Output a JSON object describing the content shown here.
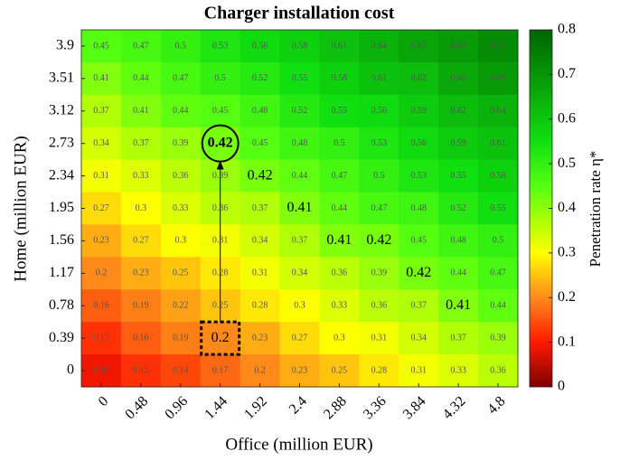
{
  "chart_data": {
    "type": "heatmap",
    "title": "Charger installation cost",
    "xlabel": "Office (million EUR)",
    "ylabel": "Home (million EUR)",
    "colorbar_label": "Penetration rate η*",
    "x": [
      0,
      0.48,
      0.96,
      1.44,
      1.92,
      2.4,
      2.88,
      3.36,
      3.84,
      4.32,
      4.8
    ],
    "y": [
      3.9,
      3.51,
      3.12,
      2.73,
      2.34,
      1.95,
      1.56,
      1.17,
      0.78,
      0.39,
      0
    ],
    "values": [
      [
        0.45,
        0.47,
        0.5,
        0.53,
        0.56,
        0.58,
        0.61,
        0.64,
        0.67,
        0.69,
        0.72
      ],
      [
        0.41,
        0.44,
        0.47,
        0.5,
        0.52,
        0.55,
        0.58,
        0.61,
        0.62,
        0.66,
        0.69
      ],
      [
        0.37,
        0.41,
        0.44,
        0.45,
        0.48,
        0.52,
        0.55,
        0.56,
        0.59,
        0.62,
        0.64
      ],
      [
        0.34,
        0.37,
        0.39,
        0.42,
        0.45,
        0.48,
        0.5,
        0.53,
        0.56,
        0.59,
        0.61
      ],
      [
        0.31,
        0.33,
        0.36,
        0.39,
        0.42,
        0.44,
        0.47,
        0.5,
        0.53,
        0.55,
        0.58
      ],
      [
        0.27,
        0.3,
        0.33,
        0.36,
        0.37,
        0.41,
        0.44,
        0.47,
        0.48,
        0.52,
        0.55
      ],
      [
        0.23,
        0.27,
        0.3,
        0.31,
        0.34,
        0.37,
        0.41,
        0.42,
        0.45,
        0.48,
        0.5
      ],
      [
        0.2,
        0.23,
        0.25,
        0.28,
        0.31,
        0.34,
        0.36,
        0.39,
        0.42,
        0.44,
        0.47
      ],
      [
        0.16,
        0.19,
        0.22,
        0.25,
        0.28,
        0.3,
        0.33,
        0.36,
        0.37,
        0.41,
        0.44
      ],
      [
        0.12,
        0.16,
        0.19,
        0.2,
        0.23,
        0.27,
        0.3,
        0.31,
        0.34,
        0.37,
        0.39
      ],
      [
        0.09,
        0.12,
        0.14,
        0.17,
        0.2,
        0.23,
        0.25,
        0.28,
        0.31,
        0.33,
        0.36
      ]
    ],
    "emphasized_cells": [
      [
        3,
        3
      ],
      [
        4,
        4
      ],
      [
        5,
        5
      ],
      [
        6,
        6
      ],
      [
        6,
        7
      ],
      [
        7,
        8
      ],
      [
        8,
        9
      ],
      [
        9,
        3
      ]
    ],
    "circled_cell": [
      3,
      3
    ],
    "boxed_cell": [
      9,
      3
    ],
    "clim": [
      0,
      0.8
    ],
    "cticks": [
      0,
      0.1,
      0.2,
      0.3,
      0.4,
      0.5,
      0.6,
      0.7,
      0.8
    ],
    "colormap": [
      [
        0,
        "#800000"
      ],
      [
        0.1,
        "#ff1a00"
      ],
      [
        0.2,
        "#ff8a1a"
      ],
      [
        0.3,
        "#ffff00"
      ],
      [
        0.45,
        "#55ff10"
      ],
      [
        0.55,
        "#10e010"
      ],
      [
        0.8,
        "#006400"
      ]
    ]
  }
}
